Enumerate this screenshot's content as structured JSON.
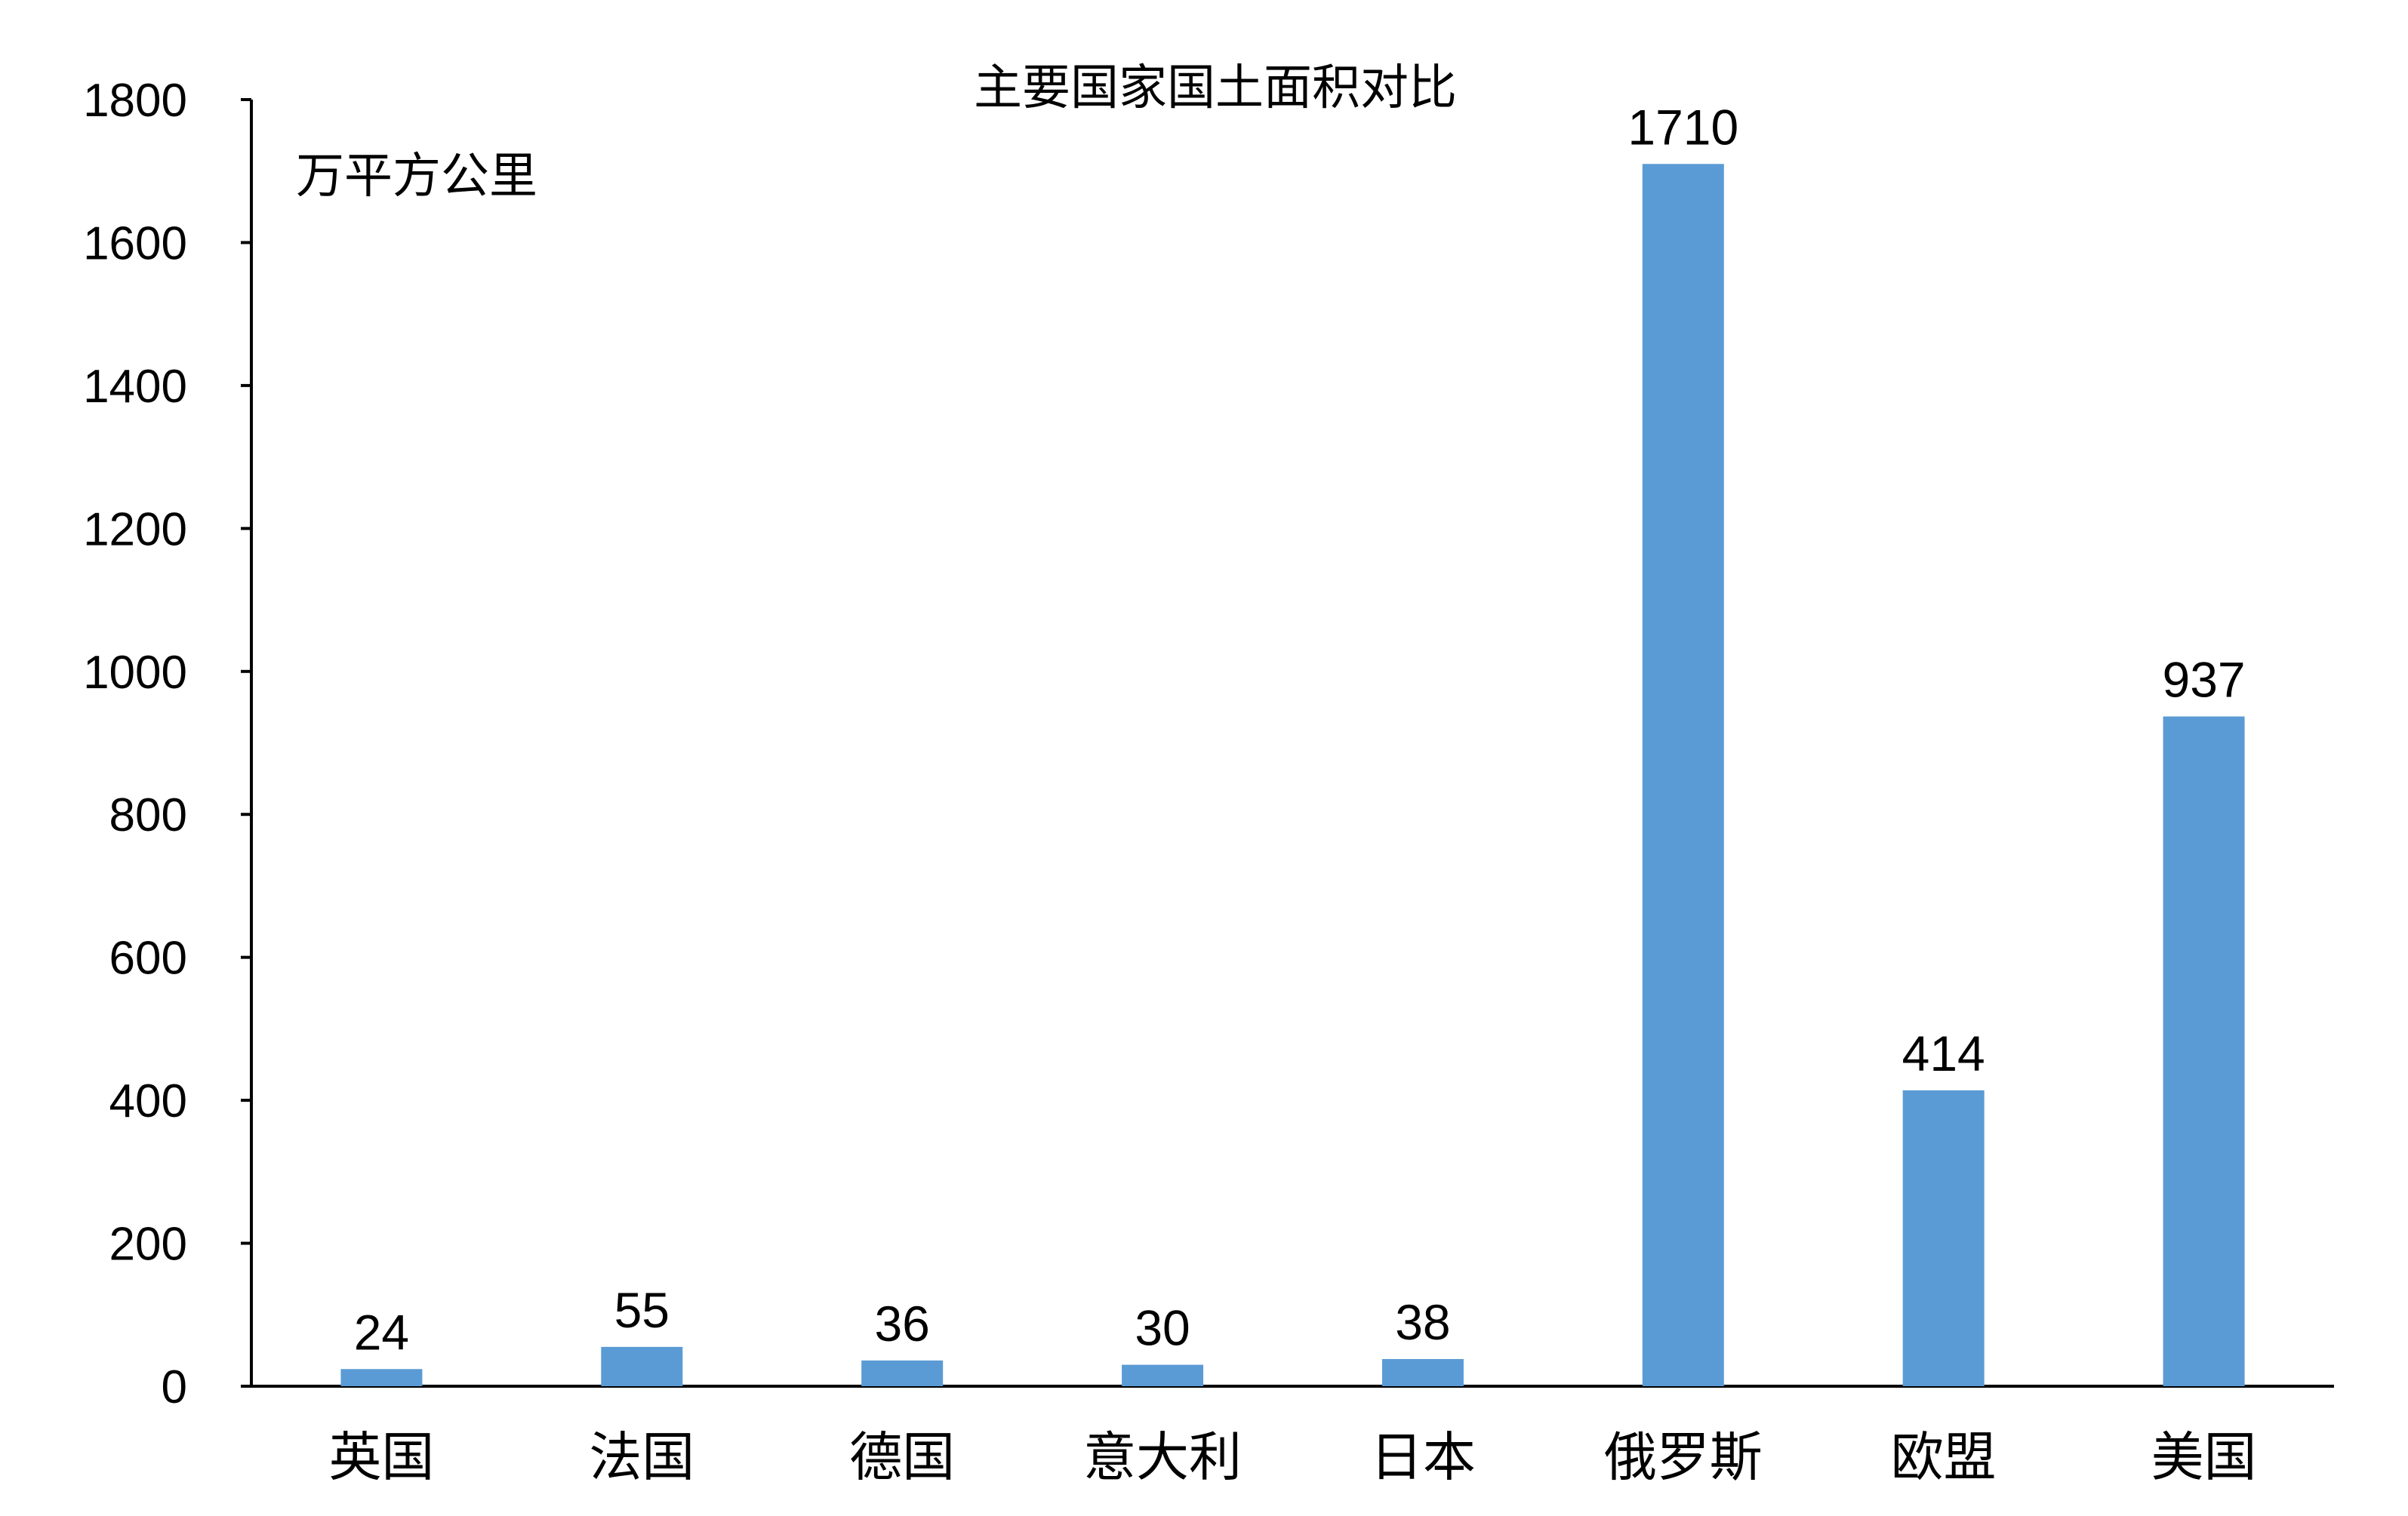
{
  "chart_data": {
    "type": "bar",
    "title": "主要国家国土面积对比",
    "unit_label": "万平方公里",
    "xlabel": "",
    "ylabel": "",
    "categories": [
      "英国",
      "法国",
      "德国",
      "意大利",
      "日本",
      "俄罗斯",
      "欧盟",
      "美国"
    ],
    "values": [
      24,
      55,
      36,
      30,
      38,
      1710,
      414,
      937
    ],
    "data_labels": [
      "24",
      "55",
      "36",
      "30",
      "38",
      "1710",
      "414",
      "937"
    ],
    "ylim": [
      0,
      1800
    ],
    "yticks": [
      0,
      200,
      400,
      600,
      800,
      1000,
      1200,
      1400,
      1600,
      1800
    ],
    "grid": false,
    "legend": "none",
    "bar_color": "#5B9BD5"
  }
}
